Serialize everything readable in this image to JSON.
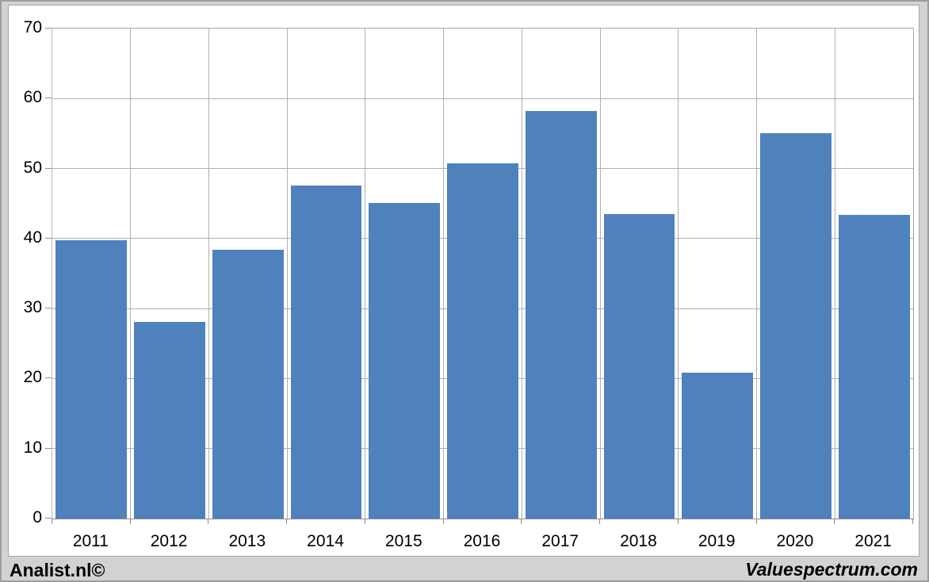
{
  "chart_data": {
    "type": "bar",
    "title": "",
    "xlabel": "",
    "ylabel": "",
    "categories": [
      "2011",
      "2012",
      "2013",
      "2014",
      "2015",
      "2016",
      "2017",
      "2018",
      "2019",
      "2020",
      "2021"
    ],
    "values": [
      39.8,
      28.1,
      38.4,
      47.6,
      45.1,
      50.7,
      58.2,
      43.5,
      20.8,
      55.0,
      43.4
    ],
    "ylim": [
      0,
      70
    ],
    "yticks": [
      0,
      10,
      20,
      30,
      40,
      50,
      60,
      70
    ],
    "grid": true,
    "legend": "none",
    "bar_color": "#4f81bd",
    "gridline_color": "#b0b0b0",
    "plot_background": "#ffffff"
  },
  "footer": {
    "left_brand": "Analist.nl©",
    "right_brand": "Valuespectrum.com"
  }
}
